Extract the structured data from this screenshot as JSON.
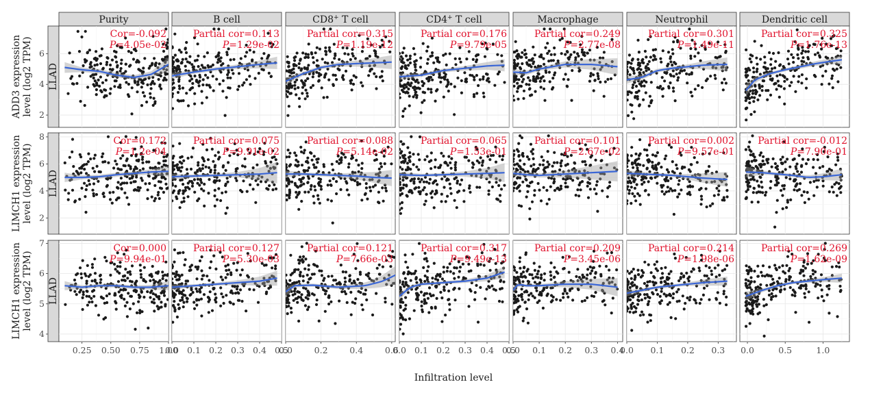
{
  "xlabel": "Infiltration level",
  "colors": {
    "point": "#1a1a1a",
    "fit": "#3a66d6",
    "ci": "#9e9e9e",
    "stat": "#e0102a",
    "strip": "#d9d9d9"
  },
  "columns": [
    {
      "label": "Purity",
      "label_sup": "",
      "label_rest": "",
      "xlim": [
        0.05,
        1.0
      ],
      "ticks": [
        0.25,
        0.5,
        0.75,
        1.0
      ],
      "tick_labels": [
        "0.25",
        "0.50",
        "0.75",
        "1.00"
      ]
    },
    {
      "label": "B cell",
      "label_sup": "",
      "label_rest": "",
      "xlim": [
        0.0,
        0.5
      ],
      "ticks": [
        0.0,
        0.1,
        0.2,
        0.3,
        0.4,
        0.5
      ],
      "tick_labels": [
        "0.0",
        "0.1",
        "0.2",
        "0.3",
        "0.4",
        "0.5"
      ]
    },
    {
      "label": "CD8",
      "label_sup": "+",
      "label_rest": " T cell",
      "xlim": [
        0.0,
        0.62
      ],
      "ticks": [
        0.0,
        0.2,
        0.4,
        0.6
      ],
      "tick_labels": [
        "0.0",
        "0.2",
        "0.4",
        "0.6"
      ]
    },
    {
      "label": "CD4",
      "label_sup": "+",
      "label_rest": " T cell",
      "xlim": [
        0.0,
        0.5
      ],
      "ticks": [
        0.0,
        0.1,
        0.2,
        0.3,
        0.4,
        0.5
      ],
      "tick_labels": [
        "0.0",
        "0.1",
        "0.2",
        "0.3",
        "0.4",
        "0.5"
      ]
    },
    {
      "label": "Macrophage",
      "label_sup": "",
      "label_rest": "",
      "xlim": [
        0.0,
        0.42
      ],
      "ticks": [
        0.0,
        0.1,
        0.2,
        0.3,
        0.4
      ],
      "tick_labels": [
        "0.0",
        "0.1",
        "0.2",
        "0.3",
        "0.4"
      ]
    },
    {
      "label": "Neutrophil",
      "label_sup": "",
      "label_rest": "",
      "xlim": [
        0.0,
        0.36
      ],
      "ticks": [
        0.0,
        0.1,
        0.2,
        0.3
      ],
      "tick_labels": [
        "0.0",
        "0.1",
        "0.2",
        "0.3"
      ]
    },
    {
      "label": "Dendritic cell",
      "label_sup": "",
      "label_rest": "",
      "xlim": [
        -0.1,
        1.35
      ],
      "ticks": [
        0.0,
        0.5,
        1.0
      ],
      "tick_labels": [
        "0.0",
        "0.5",
        "1.0"
      ]
    }
  ],
  "rows": [
    {
      "ylabel_line1": "ADD3 expression",
      "ylabel_line2": "level (log2 TPM)",
      "strip": "LLAD",
      "ylim": [
        1.2,
        7.8
      ],
      "ticks": [
        2,
        4,
        6
      ],
      "tick_labels": [
        "2",
        "4",
        "6"
      ]
    },
    {
      "ylabel_line1": "LIMCH1 expression",
      "ylabel_line2": "level (log2 TPM)",
      "strip": "LLAD",
      "ylim": [
        0.8,
        8.3
      ],
      "ticks": [
        2,
        4,
        6,
        8
      ],
      "tick_labels": [
        "2",
        "4",
        "6",
        "8"
      ]
    },
    {
      "ylabel_line1": "LIMCH1 expression",
      "ylabel_line2": "level (log2 TPM)",
      "strip": "LLAD",
      "ylim": [
        3.75,
        7.1
      ],
      "ticks": [
        4,
        5,
        6,
        7
      ],
      "tick_labels": [
        "4",
        "5",
        "6",
        "7"
      ]
    }
  ],
  "chart_data": {
    "type": "scatter",
    "xlabel": "Infiltration level",
    "panels": [
      {
        "row": 0,
        "col": 0,
        "stat_label": "Cor=",
        "cor": "-0.092",
        "p": "4.05e-02",
        "fit_x": [
          0.1,
          0.25,
          0.4,
          0.55,
          0.7,
          0.85,
          1.0
        ],
        "fit_y": [
          5.1,
          4.95,
          4.85,
          4.6,
          4.45,
          4.65,
          5.3
        ],
        "ci": [
          0.35,
          0.15,
          0.15,
          0.15,
          0.15,
          0.2,
          0.45
        ]
      },
      {
        "row": 0,
        "col": 1,
        "stat_label": "Partial cor=",
        "cor": "0.113",
        "p": "1.29e-02",
        "fit_x": [
          0.0,
          0.1,
          0.2,
          0.3,
          0.4,
          0.48
        ],
        "fit_y": [
          4.55,
          4.8,
          5.0,
          5.15,
          5.3,
          5.4
        ],
        "ci": [
          0.2,
          0.12,
          0.12,
          0.15,
          0.25,
          0.4
        ]
      },
      {
        "row": 0,
        "col": 2,
        "stat_label": "Partial cor=",
        "cor": "0.315",
        "p": "1.19e-12",
        "fit_x": [
          0.0,
          0.1,
          0.2,
          0.3,
          0.4,
          0.5,
          0.6
        ],
        "fit_y": [
          4.2,
          4.7,
          5.1,
          5.3,
          5.35,
          5.4,
          5.45
        ],
        "ci": [
          0.25,
          0.12,
          0.12,
          0.15,
          0.2,
          0.3,
          0.45
        ]
      },
      {
        "row": 0,
        "col": 3,
        "stat_label": "Partial cor=",
        "cor": "0.176",
        "p": "9.79e-05",
        "fit_x": [
          0.0,
          0.1,
          0.2,
          0.3,
          0.4,
          0.48
        ],
        "fit_y": [
          4.5,
          4.6,
          4.9,
          5.05,
          5.2,
          5.25
        ],
        "ci": [
          0.2,
          0.12,
          0.12,
          0.15,
          0.25,
          0.4
        ]
      },
      {
        "row": 0,
        "col": 4,
        "stat_label": "Partial cor=",
        "cor": "0.249",
        "p": "2.77e-08",
        "fit_x": [
          0.0,
          0.05,
          0.1,
          0.2,
          0.3,
          0.4
        ],
        "fit_y": [
          4.8,
          4.75,
          5.0,
          5.3,
          5.3,
          5.15
        ],
        "ci": [
          0.2,
          0.15,
          0.12,
          0.2,
          0.35,
          0.55
        ]
      },
      {
        "row": 0,
        "col": 5,
        "stat_label": "Partial cor=",
        "cor": "0.301",
        "p": "1.49e-11",
        "fit_x": [
          0.0,
          0.05,
          0.1,
          0.15,
          0.2,
          0.25,
          0.33
        ],
        "fit_y": [
          4.3,
          4.45,
          4.9,
          5.05,
          5.15,
          5.25,
          5.3
        ],
        "ci": [
          0.25,
          0.15,
          0.12,
          0.12,
          0.15,
          0.25,
          0.45
        ]
      },
      {
        "row": 0,
        "col": 6,
        "stat_label": "Partial cor=",
        "cor": "0.325",
        "p": "1.76e-13",
        "fit_x": [
          -0.02,
          0.1,
          0.3,
          0.5,
          0.7,
          0.9,
          1.1,
          1.25
        ],
        "fit_y": [
          3.6,
          4.3,
          4.7,
          4.95,
          5.15,
          5.35,
          5.5,
          5.6
        ],
        "ci": [
          0.4,
          0.2,
          0.12,
          0.1,
          0.12,
          0.15,
          0.2,
          0.3
        ]
      },
      {
        "row": 1,
        "col": 0,
        "stat_label": "Cor=",
        "cor": "0.172",
        "p": "1.2e-04",
        "fit_x": [
          0.1,
          0.25,
          0.4,
          0.55,
          0.7,
          0.85,
          1.0
        ],
        "fit_y": [
          5.0,
          5.0,
          5.05,
          5.2,
          5.3,
          5.4,
          5.45
        ],
        "ci": [
          0.35,
          0.15,
          0.15,
          0.15,
          0.15,
          0.2,
          0.4
        ]
      },
      {
        "row": 1,
        "col": 1,
        "stat_label": "Partial cor=",
        "cor": "0.075",
        "p": "9.91e-02",
        "fit_x": [
          0.0,
          0.1,
          0.2,
          0.3,
          0.4,
          0.48
        ],
        "fit_y": [
          5.05,
          5.1,
          5.15,
          5.2,
          5.25,
          5.35
        ],
        "ci": [
          0.2,
          0.12,
          0.12,
          0.2,
          0.45,
          0.8
        ]
      },
      {
        "row": 1,
        "col": 2,
        "stat_label": "Partial cor=",
        "cor": "0.088",
        "p": "5.14e-02",
        "fit_x": [
          0.0,
          0.1,
          0.2,
          0.3,
          0.4,
          0.5,
          0.6
        ],
        "fit_y": [
          5.25,
          5.25,
          5.2,
          5.15,
          5.1,
          5.0,
          4.95
        ],
        "ci": [
          0.25,
          0.12,
          0.12,
          0.15,
          0.25,
          0.4,
          0.6
        ]
      },
      {
        "row": 1,
        "col": 3,
        "stat_label": "Partial cor=",
        "cor": "0.065",
        "p": "1.53e-01",
        "fit_x": [
          0.0,
          0.1,
          0.2,
          0.3,
          0.4,
          0.48
        ],
        "fit_y": [
          5.2,
          5.15,
          5.2,
          5.25,
          5.3,
          5.35
        ],
        "ci": [
          0.2,
          0.12,
          0.12,
          0.2,
          0.4,
          0.7
        ]
      },
      {
        "row": 1,
        "col": 4,
        "stat_label": "Partial cor=",
        "cor": "0.101",
        "p": "2.67e-02",
        "fit_x": [
          0.0,
          0.05,
          0.1,
          0.2,
          0.3,
          0.4
        ],
        "fit_y": [
          5.3,
          5.2,
          5.15,
          5.25,
          5.35,
          5.45
        ],
        "ci": [
          0.2,
          0.15,
          0.15,
          0.25,
          0.5,
          0.75
        ]
      },
      {
        "row": 1,
        "col": 5,
        "stat_label": "Partial cor=",
        "cor": "0.002",
        "p": "9.57e-01",
        "fit_x": [
          0.0,
          0.05,
          0.1,
          0.15,
          0.2,
          0.25,
          0.33
        ],
        "fit_y": [
          5.3,
          5.25,
          5.2,
          5.15,
          5.05,
          4.95,
          4.85
        ],
        "ci": [
          0.25,
          0.15,
          0.12,
          0.12,
          0.2,
          0.35,
          0.55
        ]
      },
      {
        "row": 1,
        "col": 6,
        "stat_label": "Partial cor=",
        "cor": "-0.012",
        "p": "7.90e-01",
        "fit_x": [
          -0.02,
          0.2,
          0.4,
          0.6,
          0.8,
          1.0,
          1.25
        ],
        "fit_y": [
          5.4,
          5.35,
          5.25,
          5.15,
          5.0,
          5.05,
          5.2
        ],
        "ci": [
          0.4,
          0.15,
          0.12,
          0.12,
          0.15,
          0.25,
          0.45
        ]
      },
      {
        "row": 2,
        "col": 0,
        "stat_label": "Cor=",
        "cor": "0.000",
        "p": "9.94e-01",
        "fit_x": [
          0.1,
          0.25,
          0.4,
          0.55,
          0.7,
          0.85,
          1.0
        ],
        "fit_y": [
          5.6,
          5.55,
          5.6,
          5.6,
          5.55,
          5.55,
          5.6
        ],
        "ci": [
          0.15,
          0.06,
          0.06,
          0.06,
          0.06,
          0.08,
          0.15
        ]
      },
      {
        "row": 2,
        "col": 1,
        "stat_label": "Partial cor=",
        "cor": "0.127",
        "p": "5.30e-03",
        "fit_x": [
          0.0,
          0.1,
          0.2,
          0.3,
          0.4,
          0.48
        ],
        "fit_y": [
          5.55,
          5.6,
          5.65,
          5.7,
          5.75,
          5.85
        ],
        "ci": [
          0.08,
          0.05,
          0.05,
          0.08,
          0.15,
          0.25
        ]
      },
      {
        "row": 2,
        "col": 2,
        "stat_label": "Partial cor=",
        "cor": "0.121",
        "p": "7.66e-03",
        "fit_x": [
          0.0,
          0.05,
          0.15,
          0.3,
          0.45,
          0.55,
          0.62
        ],
        "fit_y": [
          5.4,
          5.6,
          5.62,
          5.55,
          5.6,
          5.75,
          5.95
        ],
        "ci": [
          0.15,
          0.06,
          0.05,
          0.06,
          0.1,
          0.2,
          0.3
        ]
      },
      {
        "row": 2,
        "col": 3,
        "stat_label": "Partial cor=",
        "cor": "0.317",
        "p": "9.49e-13",
        "fit_x": [
          0.0,
          0.05,
          0.1,
          0.2,
          0.3,
          0.4,
          0.48
        ],
        "fit_y": [
          5.25,
          5.55,
          5.65,
          5.7,
          5.75,
          5.85,
          6.05
        ],
        "ci": [
          0.12,
          0.06,
          0.05,
          0.05,
          0.06,
          0.1,
          0.2
        ]
      },
      {
        "row": 2,
        "col": 4,
        "stat_label": "Partial cor=",
        "cor": "0.209",
        "p": "3.45e-06",
        "fit_x": [
          0.0,
          0.02,
          0.05,
          0.1,
          0.2,
          0.3,
          0.4
        ],
        "fit_y": [
          5.45,
          5.65,
          5.6,
          5.6,
          5.65,
          5.65,
          5.55
        ],
        "ci": [
          0.1,
          0.06,
          0.05,
          0.05,
          0.1,
          0.18,
          0.3
        ]
      },
      {
        "row": 2,
        "col": 5,
        "stat_label": "Partial cor=",
        "cor": "0.214",
        "p": "1.98e-06",
        "fit_x": [
          0.0,
          0.05,
          0.1,
          0.15,
          0.2,
          0.25,
          0.33
        ],
        "fit_y": [
          5.35,
          5.45,
          5.55,
          5.6,
          5.65,
          5.7,
          5.75
        ],
        "ci": [
          0.1,
          0.06,
          0.05,
          0.05,
          0.06,
          0.1,
          0.15
        ]
      },
      {
        "row": 2,
        "col": 6,
        "stat_label": "Partial cor=",
        "cor": "0.269",
        "p": "1.62e-09",
        "fit_x": [
          -0.02,
          0.2,
          0.4,
          0.6,
          0.8,
          1.0,
          1.25
        ],
        "fit_y": [
          5.25,
          5.45,
          5.6,
          5.7,
          5.75,
          5.8,
          5.85
        ],
        "ci": [
          0.15,
          0.06,
          0.05,
          0.05,
          0.06,
          0.08,
          0.15
        ]
      }
    ]
  }
}
